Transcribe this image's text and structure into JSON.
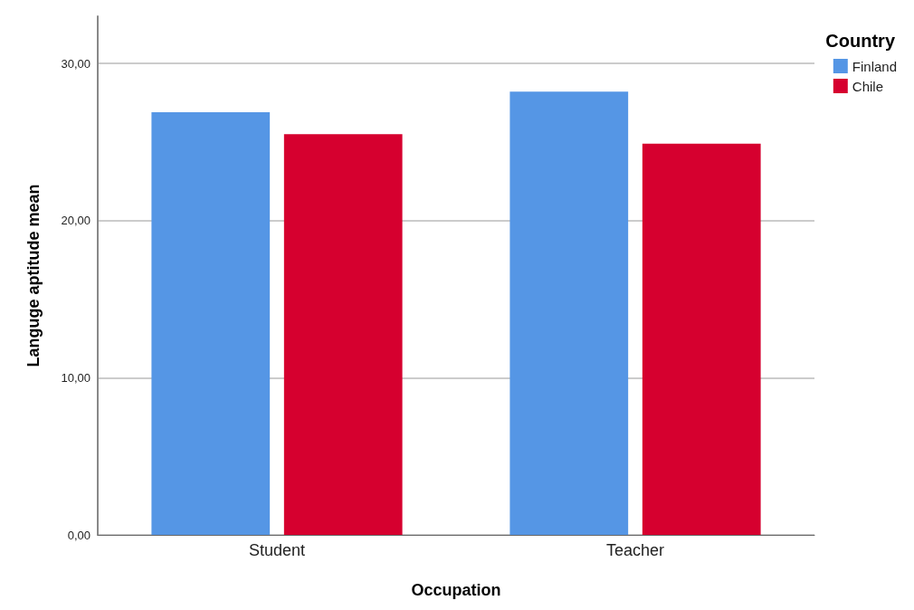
{
  "chart_data": {
    "type": "bar",
    "xlabel": "Occupation",
    "ylabel": "Languge aptitude mean",
    "legend_title": "Country",
    "categories": [
      "Student",
      "Teacher"
    ],
    "series": [
      {
        "name": "Finland",
        "color": "#5596e5",
        "values": [
          26.9,
          28.2
        ]
      },
      {
        "name": "Chile",
        "color": "#d6002f",
        "values": [
          25.5,
          24.9
        ]
      }
    ],
    "ylim": [
      0,
      33
    ],
    "yticks": [
      {
        "value": 0,
        "label": "0,00"
      },
      {
        "value": 10,
        "label": "10,00"
      },
      {
        "value": 20,
        "label": "20,00"
      },
      {
        "value": 30,
        "label": "30,00"
      }
    ],
    "grid": "y",
    "legend": "top right"
  }
}
